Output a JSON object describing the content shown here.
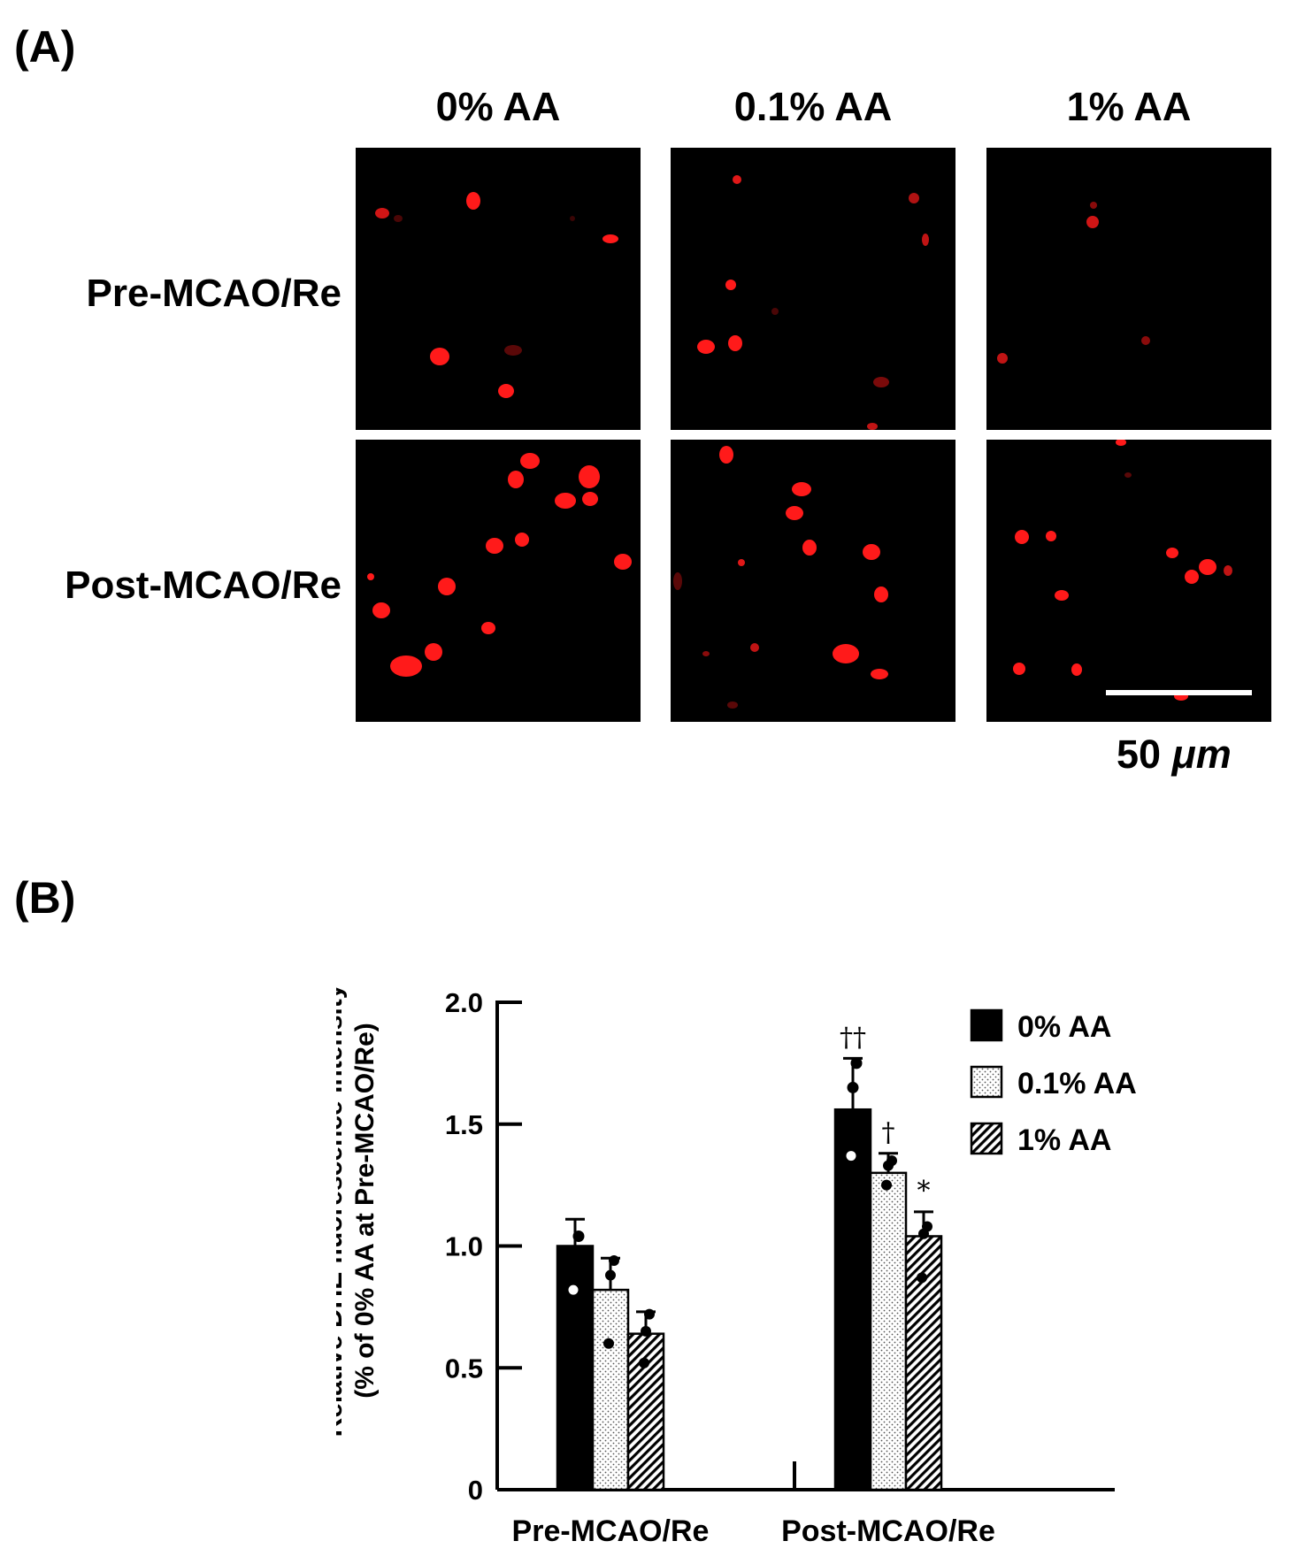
{
  "panel_a": {
    "label": "(A)",
    "columns": [
      "0% AA",
      "0.1% AA",
      "1% AA"
    ],
    "rows": [
      "Pre-MCAO/Re",
      "Post-MCAO/Re"
    ],
    "scale_bar": {
      "value": "50",
      "unit": "μm"
    },
    "stain_color": "#ff1a1a"
  },
  "panel_b": {
    "label": "(B)"
  },
  "chart_data": {
    "type": "bar",
    "ylabel_lines": [
      "Relative DHE fluorescence intensity",
      "(% of 0% AA at Pre-MCAO/Re)"
    ],
    "ylim": [
      0,
      2.0
    ],
    "yticks": [
      0,
      0.5,
      1.0,
      1.5,
      2.0
    ],
    "ytick_labels": [
      "0",
      "0.5",
      "1.0",
      "1.5",
      "2.0"
    ],
    "categories": [
      "Pre-MCAO/Re",
      "Post-MCAO/Re"
    ],
    "series": [
      {
        "name": "0% AA",
        "pattern": "solid",
        "values": [
          1.0,
          1.56
        ],
        "errors": [
          0.11,
          0.21
        ],
        "points": [
          [
            0.98,
            0.82,
            1.04
          ],
          [
            1.65,
            1.37,
            1.75
          ]
        ],
        "sig": [
          "",
          "††"
        ]
      },
      {
        "name": "0.1% AA",
        "pattern": "dots",
        "values": [
          0.82,
          1.3
        ],
        "errors": [
          0.13,
          0.08
        ],
        "points": [
          [
            0.88,
            0.6,
            0.94
          ],
          [
            1.33,
            1.25,
            1.35
          ]
        ],
        "sig": [
          "",
          "†"
        ]
      },
      {
        "name": "1% AA",
        "pattern": "hatch",
        "values": [
          0.64,
          1.04
        ],
        "errors": [
          0.09,
          0.1
        ],
        "points": [
          [
            0.65,
            0.52,
            0.72
          ],
          [
            1.05,
            0.87,
            1.08
          ]
        ],
        "sig": [
          "",
          "*"
        ]
      }
    ],
    "grid": false,
    "legend_position": "right"
  }
}
